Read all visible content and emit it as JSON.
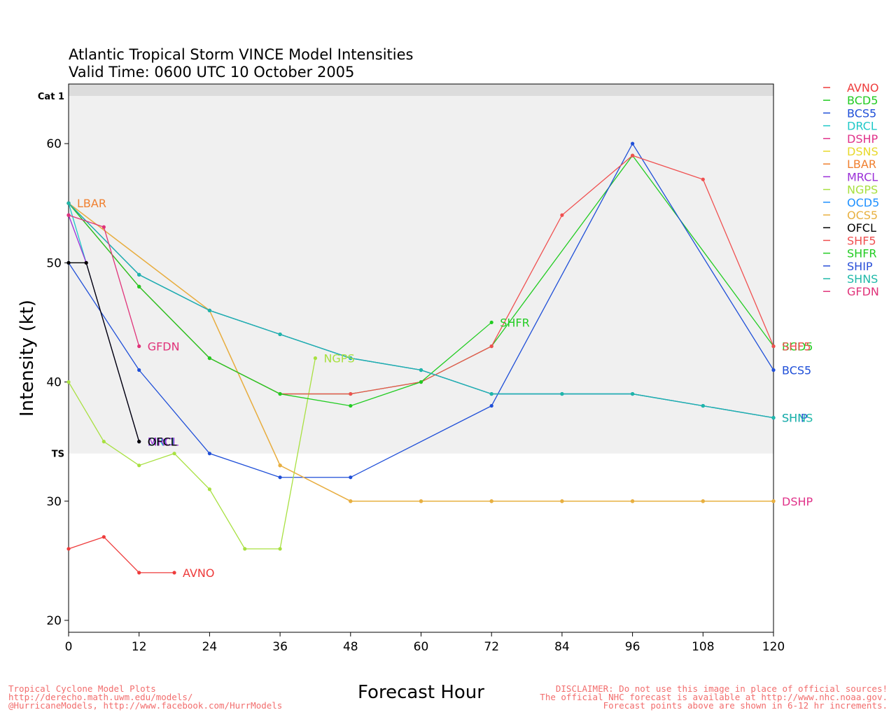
{
  "chart_data": {
    "type": "line",
    "title": "Atlantic Tropical Storm VINCE Model Intensities",
    "subtitle": "Valid Time: 0600 UTC 10 October 2005",
    "xlabel": "Forecast Hour",
    "ylabel": "Intensity (kt)",
    "xlim": [
      0,
      120
    ],
    "ylim": [
      19,
      65
    ],
    "xticks": [
      0,
      12,
      24,
      36,
      48,
      60,
      72,
      84,
      96,
      108,
      120
    ],
    "yticks": [
      20,
      30,
      40,
      50,
      60
    ],
    "bands": [
      {
        "label": "TS",
        "from": 34,
        "to": 64,
        "color": "#f0f0f0"
      },
      {
        "label": "Cat 1",
        "from": 64,
        "to": 65,
        "color": "#dcdcdc"
      }
    ],
    "legend_position": "right",
    "series": [
      {
        "name": "AVNO",
        "color": "#ee3b3b",
        "label": "AVNO",
        "label_side": "right",
        "x": [
          0,
          6,
          12,
          18
        ],
        "y": [
          26,
          27,
          24,
          24
        ]
      },
      {
        "name": "BCD5",
        "color": "#22cc22",
        "label": "BCD5",
        "label_side": "right",
        "x": [
          0,
          12,
          24,
          36,
          48,
          60,
          72,
          96,
          120
        ],
        "y": [
          55,
          48,
          42,
          39,
          39,
          40,
          43,
          59,
          43
        ]
      },
      {
        "name": "BCS5",
        "color": "#1f4fd8",
        "label": "BCS5",
        "label_side": "right",
        "x": [
          0,
          12,
          24,
          36,
          48,
          72,
          96,
          120
        ],
        "y": [
          50,
          41,
          34,
          32,
          32,
          38,
          60,
          41
        ]
      },
      {
        "name": "DRCL",
        "color": "#1fc8c8",
        "label": "DRCL",
        "label_side": "right",
        "x": [
          0,
          12
        ],
        "y": [
          55,
          35
        ]
      },
      {
        "name": "DSHP",
        "color": "#e0338a",
        "label": "DSHP",
        "label_side": "right",
        "x": [
          0,
          24,
          36,
          48,
          60,
          72,
          84,
          96,
          108,
          120
        ],
        "y": [
          55,
          46,
          33,
          30,
          30,
          30,
          30,
          30,
          30,
          30
        ]
      },
      {
        "name": "DSNS",
        "color": "#e8d82a",
        "label": "",
        "label_side": "right",
        "x": [
          0,
          24,
          36,
          48,
          60,
          72,
          84,
          96,
          108,
          120
        ],
        "y": [
          55,
          46,
          33,
          30,
          30,
          30,
          30,
          30,
          30,
          30
        ]
      },
      {
        "name": "LBAR",
        "color": "#f08030",
        "label": "LBAR",
        "label_side": "right",
        "x": [
          0
        ],
        "y": [
          55
        ]
      },
      {
        "name": "MRCL",
        "color": "#9b30d8",
        "label": "MRCL",
        "label_side": "right",
        "x": [
          0,
          3,
          12
        ],
        "y": [
          54,
          50,
          35
        ]
      },
      {
        "name": "NGPS",
        "color": "#a8e040",
        "label": "NGPS",
        "label_side": "right",
        "x": [
          0,
          6,
          12,
          18,
          24,
          30,
          36,
          42
        ],
        "y": [
          40,
          35,
          33,
          34,
          31,
          26,
          26,
          42
        ]
      },
      {
        "name": "OCD5",
        "color": "#1e90ff",
        "label": "",
        "label_side": "right",
        "x": [
          0,
          12,
          24,
          36,
          48,
          60,
          72,
          84,
          96,
          108,
          120
        ],
        "y": [
          55,
          49,
          46,
          44,
          42,
          41,
          39,
          39,
          39,
          38,
          37
        ]
      },
      {
        "name": "OCS5",
        "color": "#e8b040",
        "label": "",
        "label_side": "right",
        "x": [
          0,
          24,
          36,
          48,
          60,
          72,
          84,
          96,
          108,
          120
        ],
        "y": [
          55,
          46,
          33,
          30,
          30,
          30,
          30,
          30,
          30,
          30
        ]
      },
      {
        "name": "OFCL",
        "color": "#000000",
        "label": "OFCL",
        "label_side": "right",
        "x": [
          0,
          3,
          12
        ],
        "y": [
          50,
          50,
          35
        ]
      },
      {
        "name": "SHF5",
        "color": "#f05050",
        "label": "SHF5",
        "label_side": "right",
        "x": [
          0,
          12,
          24,
          36,
          48,
          60,
          72,
          84,
          96,
          108,
          120
        ],
        "y": [
          55,
          48,
          42,
          39,
          39,
          40,
          43,
          54,
          59,
          57,
          43
        ]
      },
      {
        "name": "SHFR",
        "color": "#22cc22",
        "label": "SHFR",
        "label_side": "right",
        "x": [
          0,
          12,
          24,
          36,
          48,
          60,
          72
        ],
        "y": [
          55,
          48,
          42,
          39,
          38,
          40,
          45
        ]
      },
      {
        "name": "SHIP",
        "color": "#2a50d8",
        "label": "SHIP",
        "label_side": "right",
        "x": [
          0,
          12,
          24,
          36,
          48,
          60,
          72,
          84,
          96,
          108,
          120
        ],
        "y": [
          55,
          49,
          46,
          44,
          42,
          41,
          39,
          39,
          39,
          38,
          37
        ]
      },
      {
        "name": "SHNS",
        "color": "#1fb8a8",
        "label": "SHNS",
        "label_side": "right",
        "x": [
          0,
          12,
          24,
          36,
          48,
          60,
          72,
          84,
          96,
          108,
          120
        ],
        "y": [
          55,
          49,
          46,
          44,
          42,
          41,
          39,
          39,
          39,
          38,
          37
        ]
      },
      {
        "name": "GFDN",
        "color": "#e0337a",
        "label": "GFDN",
        "label_side": "right",
        "x": [
          0,
          6,
          12
        ],
        "y": [
          54,
          53,
          43
        ]
      }
    ]
  },
  "footer": {
    "left": [
      "Tropical Cyclone Model Plots",
      "http://derecho.math.uwm.edu/models/",
      "@HurricaneModels, http://www.facebook.com/HurrModels"
    ],
    "right": [
      "DISCLAIMER: Do not use this image in place of official sources!",
      "The official NHC forecast is available at http://www.nhc.noaa.gov.",
      "Forecast points above are shown in 6-12 hr increments."
    ]
  }
}
